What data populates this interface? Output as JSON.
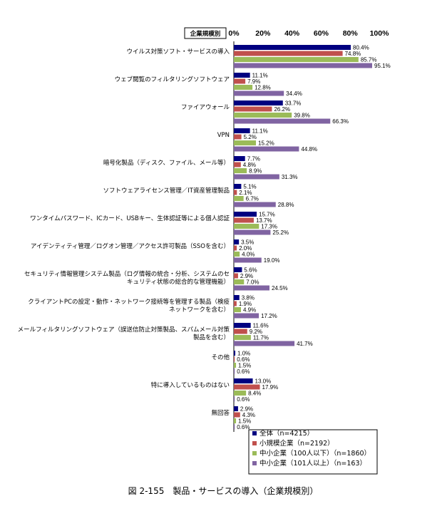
{
  "header_label": "企業規模別",
  "caption": "図 2-155　製品・サービスの導入（企業規模別）",
  "colors": {
    "s0": "#000080",
    "s1": "#C0504D",
    "s2": "#9BBB59",
    "s3": "#8064A2"
  },
  "chart_data": {
    "type": "bar",
    "orientation": "horizontal",
    "xlim": [
      0,
      100
    ],
    "ticks": [
      "0%",
      "20%",
      "40%",
      "60%",
      "80%",
      "100%"
    ],
    "legend_position": "bottom-right",
    "categories": [
      [
        "ウイルス対策ソフト・サービスの導入"
      ],
      [
        "ウェブ閲覧のフィルタリングソフトウェア"
      ],
      [
        "ファイアウォール"
      ],
      [
        "VPN"
      ],
      [
        "暗号化製品（ディスク、ファイル、メール等）"
      ],
      [
        "ソフトウェアライセンス管理／IT資産管理製品"
      ],
      [
        "ワンタイムパスワード、ICカード、USBキー、生体認証等による個人認証"
      ],
      [
        "アイデンティティ管理／ログオン管理／アクセス許可製品（SSOを含む）"
      ],
      [
        "セキュリティ情報管理システム製品（ログ情報の統合・分析、システムのセ",
        "キュリティ状態の総合的な管理機能）"
      ],
      [
        "クライアントPCの設定・動作・ネットワーク接続等を管理する製品（検疫",
        "ネットワークを含む）"
      ],
      [
        "メールフィルタリングソフトウェア（誤送信防止対策製品、スパムメール対策",
        "製品を含む）"
      ],
      [
        "その他"
      ],
      [
        "特に導入しているものはない"
      ],
      [
        "無回答"
      ]
    ],
    "series": [
      {
        "name": "全体（n=4215）",
        "values": [
          80.4,
          11.1,
          33.7,
          11.1,
          7.7,
          5.1,
          15.7,
          3.5,
          5.6,
          3.8,
          11.6,
          1.0,
          13.0,
          2.9
        ]
      },
      {
        "name": "小規模企業（n=2192）",
        "values": [
          74.8,
          7.9,
          26.2,
          5.2,
          4.8,
          2.1,
          13.7,
          2.0,
          2.9,
          1.9,
          9.2,
          0.6,
          17.9,
          4.3
        ]
      },
      {
        "name": "中小企業（100人以下）（n=1860）",
        "values": [
          85.7,
          12.8,
          39.8,
          15.2,
          8.9,
          6.7,
          17.3,
          4.0,
          7.0,
          4.9,
          11.7,
          1.5,
          8.4,
          1.5
        ]
      },
      {
        "name": "中小企業（101人以上）（n=163）",
        "values": [
          95.1,
          34.4,
          66.3,
          44.8,
          31.3,
          28.8,
          25.2,
          19.0,
          24.5,
          17.2,
          41.7,
          0.6,
          0.6,
          0.6
        ]
      }
    ]
  }
}
